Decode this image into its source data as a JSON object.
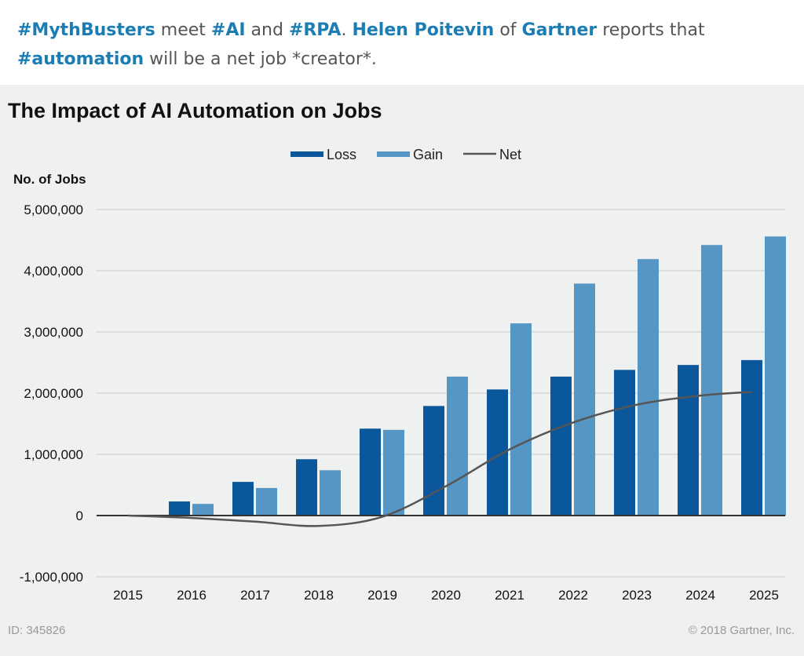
{
  "post": {
    "segments": [
      {
        "text": "#MythBusters",
        "link": true
      },
      {
        "text": " meet ",
        "link": false
      },
      {
        "text": "#AI",
        "link": true
      },
      {
        "text": " and ",
        "link": false
      },
      {
        "text": "#RPA",
        "link": true
      },
      {
        "text": ".  ",
        "link": false
      },
      {
        "text": "Helen Poitevin",
        "link": true
      },
      {
        "text": " of ",
        "link": false
      },
      {
        "text": "Gartner",
        "link": true
      },
      {
        "text": " reports that ",
        "link": false
      },
      {
        "text": "#automation",
        "link": true
      },
      {
        "text": " will be a net job *creator*.",
        "link": false
      }
    ]
  },
  "footer": {
    "id": "ID: 345826",
    "copyright": "© 2018 Gartner, Inc."
  },
  "colors": {
    "loss": "#0b579c",
    "gain": "#5596c4",
    "net": "#555555",
    "link": "#1b7db3"
  },
  "chart_data": {
    "type": "bar",
    "title": "The Impact of AI Automation on Jobs",
    "ylabel": "No. of Jobs",
    "xlabel": "",
    "ylim": [
      -1000000,
      5000000
    ],
    "yticks": [
      5000000,
      4000000,
      3000000,
      2000000,
      1000000,
      0,
      -1000000
    ],
    "ytick_labels": [
      "5,000,000",
      "4,000,000",
      "3,000,000",
      "2,000,000",
      "1,000,000",
      "0",
      "-1,000,000"
    ],
    "grid": true,
    "legend": "top-center",
    "categories": [
      "2015",
      "2016",
      "2017",
      "2018",
      "2019",
      "2020",
      "2021",
      "2022",
      "2023",
      "2024",
      "2025"
    ],
    "series": [
      {
        "name": "Loss",
        "type": "bar",
        "values": [
          0,
          230000,
          550000,
          920000,
          1420000,
          1790000,
          2060000,
          2270000,
          2380000,
          2460000,
          2540000
        ]
      },
      {
        "name": "Gain",
        "type": "bar",
        "values": [
          0,
          190000,
          450000,
          740000,
          1400000,
          2270000,
          3140000,
          3790000,
          4190000,
          4420000,
          4560000
        ]
      },
      {
        "name": "Net",
        "type": "line",
        "values": [
          0,
          -40000,
          -100000,
          -170000,
          -20000,
          480000,
          1080000,
          1520000,
          1810000,
          1960000,
          2020000
        ]
      }
    ]
  }
}
